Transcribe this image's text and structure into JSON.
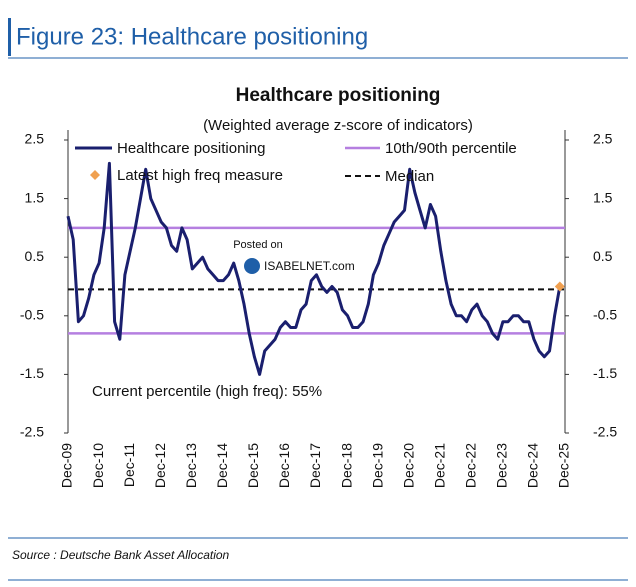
{
  "header": {
    "title": "Figure 23: Healthcare positioning"
  },
  "footer": {
    "source": "Source : Deutsche Bank Asset Allocation"
  },
  "watermark": [
    "Posted on",
    "ISABELNET.com"
  ],
  "chart_data": {
    "type": "line",
    "title": "Healthcare positioning",
    "subtitle": "(Weighted average z-score of indicators)",
    "annotation": "Current percentile (high freq): 55%",
    "categories": [
      "Dec-09",
      null,
      null,
      null,
      null,
      null,
      "Dec-10",
      null,
      null,
      null,
      null,
      null,
      "Dec-11",
      null,
      null,
      null,
      null,
      null,
      "Dec-12",
      null,
      null,
      null,
      null,
      null,
      "Dec-13",
      null,
      null,
      null,
      null,
      null,
      "Dec-14",
      null,
      null,
      null,
      null,
      null,
      "Dec-15",
      null,
      null,
      null,
      null,
      null,
      "Dec-16",
      null,
      null,
      null,
      null,
      null,
      "Dec-17",
      null,
      null,
      null,
      null,
      null,
      "Dec-18",
      null,
      null,
      null,
      null,
      null,
      "Dec-19",
      null,
      null,
      null,
      null,
      null,
      "Dec-20",
      null,
      null,
      null,
      null,
      null,
      "Dec-21",
      null,
      null,
      null,
      null,
      null,
      "Dec-22",
      null,
      null,
      null,
      null,
      null,
      "Dec-23",
      null,
      null,
      null,
      null,
      null,
      "Dec-24",
      null,
      null,
      null,
      null,
      null,
      "Dec-25"
    ],
    "series": [
      {
        "name": "Healthcare positioning",
        "color": "#1a1f6e",
        "values": [
          1.2,
          0.8,
          -0.6,
          -0.5,
          -0.2,
          0.2,
          0.4,
          1.0,
          2.1,
          -0.6,
          -0.9,
          0.2,
          0.6,
          1.0,
          1.5,
          2.0,
          1.5,
          1.3,
          1.1,
          1.0,
          0.7,
          0.6,
          1.0,
          0.8,
          0.3,
          0.4,
          0.5,
          0.3,
          0.2,
          0.1,
          0.1,
          0.2,
          0.4,
          0.1,
          -0.3,
          -0.8,
          -1.2,
          -1.5,
          -1.1,
          -1.0,
          -0.9,
          -0.7,
          -0.6,
          -0.7,
          -0.7,
          -0.4,
          -0.3,
          0.1,
          0.2,
          0.0,
          -0.1,
          0.0,
          -0.1,
          -0.4,
          -0.5,
          -0.7,
          -0.7,
          -0.6,
          -0.3,
          0.2,
          0.4,
          0.7,
          0.9,
          1.1,
          1.2,
          1.3,
          2.0,
          1.6,
          1.3,
          1.0,
          1.4,
          1.2,
          0.6,
          0.1,
          -0.3,
          -0.5,
          -0.5,
          -0.6,
          -0.4,
          -0.3,
          -0.5,
          -0.6,
          -0.8,
          -0.9,
          -0.6,
          -0.6,
          -0.5,
          -0.5,
          -0.6,
          -0.6,
          -0.9,
          -1.1,
          -1.2,
          -1.1,
          -0.5,
          0.0,
          null
        ]
      }
    ],
    "reference_lines": [
      {
        "name": "10th/90th percentile",
        "color": "#b57fe0",
        "values": [
          1.0,
          -0.8
        ]
      },
      {
        "name": "Median",
        "color": "#111111",
        "dashed": true,
        "values": [
          -0.05
        ]
      }
    ],
    "markers": [
      {
        "name": "Latest high freq measure",
        "color": "#f0a050",
        "values": [
          null,
          null,
          null,
          null,
          null,
          null,
          null,
          null,
          null,
          null,
          null,
          null,
          null,
          null,
          null,
          null,
          null,
          null,
          null,
          null,
          null,
          null,
          null,
          null,
          null,
          null,
          null,
          null,
          null,
          null,
          null,
          null,
          null,
          null,
          null,
          null,
          null,
          null,
          null,
          null,
          null,
          null,
          null,
          null,
          null,
          null,
          null,
          null,
          null,
          null,
          null,
          null,
          null,
          null,
          null,
          null,
          null,
          null,
          null,
          null,
          null,
          null,
          null,
          null,
          null,
          null,
          null,
          null,
          null,
          null,
          null,
          null,
          null,
          null,
          null,
          null,
          null,
          null,
          null,
          null,
          null,
          null,
          null,
          null,
          null,
          null,
          null,
          null,
          null,
          null,
          null,
          null,
          null,
          null,
          null,
          0.0,
          null
        ]
      }
    ],
    "ylim": [
      -2.5,
      2.5
    ],
    "yticks": [
      2.5,
      1.5,
      0.5,
      -0.5,
      -1.5,
      -2.5
    ],
    "y2lim": [
      -2.5,
      2.5
    ],
    "y2ticks": [
      2.5,
      1.5,
      0.5,
      -0.5,
      -1.5,
      -2.5
    ],
    "grid": false
  }
}
